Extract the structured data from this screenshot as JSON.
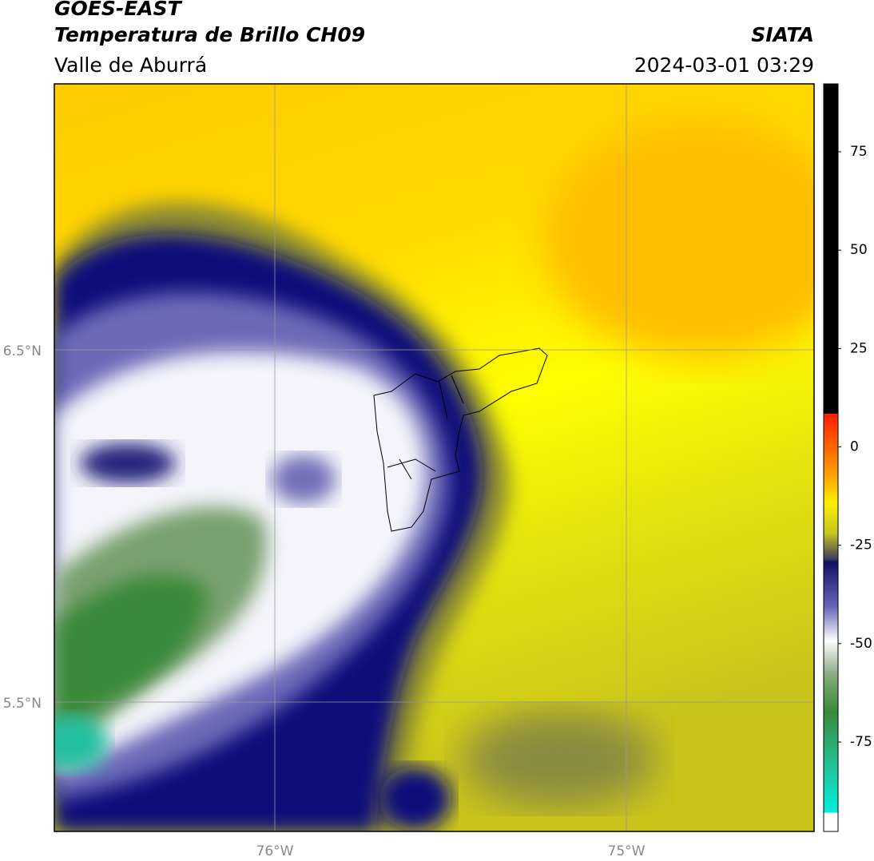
{
  "header": {
    "product": "GOES-EAST",
    "title": "Temperatura de Brillo CH09",
    "region": "Valle de Aburrá",
    "source": "SIATA",
    "timestamp": "2024-03-01 03:29"
  },
  "map": {
    "lat_labels": [
      "6.5°N",
      "5.5°N"
    ],
    "lon_labels": [
      "76°W",
      "75°W"
    ]
  },
  "colorbar": {
    "ticks": [
      75,
      50,
      25,
      0,
      -25,
      -50,
      -75
    ]
  }
}
